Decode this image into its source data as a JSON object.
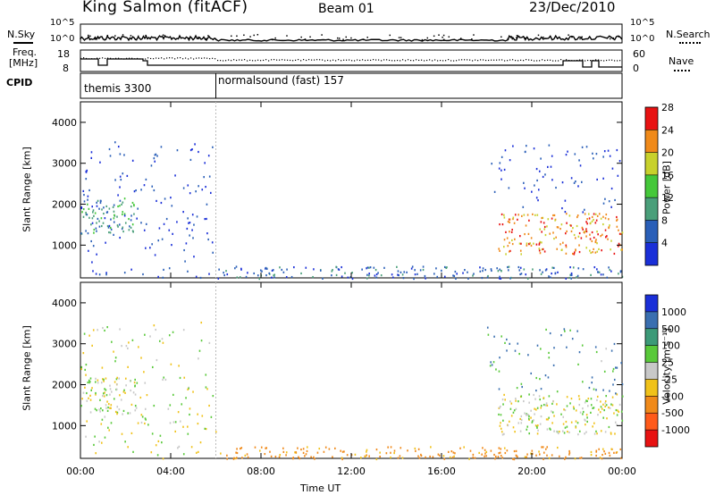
{
  "header": {
    "station": "King Salmon (fitACF)",
    "beam": "Beam 01",
    "date": "23/Dec/2010"
  },
  "noise_panel": {
    "left_label": "N.Sky",
    "right_label": "N.Search",
    "ticks_left": [
      "10^5",
      "10^0"
    ],
    "ticks_right": [
      "10^5",
      "10^0"
    ]
  },
  "freq_panel": {
    "left_label_1": "Freq.",
    "left_label_2": "[MHz]",
    "right_label": "Nave",
    "ticks_left": [
      "18",
      "8"
    ],
    "ticks_right": [
      "60",
      "0"
    ]
  },
  "cpid_panel": {
    "label": "CPID",
    "modes": [
      {
        "name": "themis 3300",
        "start_hour": 0
      },
      {
        "name": "normalsound (fast) 157",
        "start_hour": 6
      }
    ]
  },
  "x_axis": {
    "title": "Time UT",
    "ticks": [
      "00:00",
      "04:00",
      "08:00",
      "12:00",
      "16:00",
      "20:00",
      "00:00"
    ],
    "range_hours": [
      0,
      24
    ]
  },
  "chart_data": [
    {
      "type": "heatmap",
      "parameter": "power",
      "ylabel": "Slant Range [km]",
      "yticks": [
        "1000",
        "2000",
        "3000",
        "4000"
      ],
      "ylim": [
        200,
        4500
      ],
      "colorbar": {
        "label": "Power [dB]",
        "ticks": [
          "4",
          "8",
          "12",
          "16",
          "20",
          "24",
          "28"
        ],
        "colors": [
          "#1a2fd8",
          "#2a5fb8",
          "#4a9f7a",
          "#45c83a",
          "#c8d12c",
          "#f08a1a",
          "#e81212"
        ]
      },
      "regions": [
        {
          "t_start": 0.0,
          "t_end": 2.5,
          "range_start": 1300,
          "range_end": 2200,
          "value_db": 10
        },
        {
          "t_start": 0.0,
          "t_end": 6.0,
          "range_start": 200,
          "range_end": 3550,
          "value_db": 4
        },
        {
          "t_start": 6.0,
          "t_end": 24.0,
          "range_start": 200,
          "range_end": 500,
          "value_db": 6
        },
        {
          "t_start": 18.5,
          "t_end": 24.0,
          "range_start": 800,
          "range_end": 1800,
          "value_db": 22
        },
        {
          "t_start": 18.0,
          "t_end": 24.0,
          "range_start": 1800,
          "range_end": 3500,
          "value_db": 4
        }
      ]
    },
    {
      "type": "heatmap",
      "parameter": "velocity",
      "ylabel": "Slant Range [km]",
      "yticks": [
        "1000",
        "2000",
        "3000",
        "4000"
      ],
      "ylim": [
        200,
        4500
      ],
      "colorbar": {
        "label": "Velocity [m s⁻¹]",
        "ticks": [
          "1000",
          "500",
          "100",
          "25",
          "-25",
          "-100",
          "-500",
          "-1000"
        ],
        "colors": [
          "#1a2fd8",
          "#3a6fb0",
          "#3c9a78",
          "#59c93a",
          "#c8c8c8",
          "#f0c21a",
          "#f08a1a",
          "#ff5a1a",
          "#e81212"
        ]
      },
      "regions": [
        {
          "t_start": 0.0,
          "t_end": 2.5,
          "range_start": 1300,
          "range_end": 2200,
          "value_ms": 0
        },
        {
          "t_start": 0.0,
          "t_end": 6.0,
          "range_start": 200,
          "range_end": 3550,
          "value_ms": 0
        },
        {
          "t_start": 6.0,
          "t_end": 24.0,
          "range_start": 200,
          "range_end": 500,
          "value_ms": -150
        },
        {
          "t_start": 18.5,
          "t_end": 24.0,
          "range_start": 800,
          "range_end": 1800,
          "value_ms": 0
        },
        {
          "t_start": 18.0,
          "t_end": 24.0,
          "range_start": 1800,
          "range_end": 3500,
          "value_ms": 100
        }
      ]
    }
  ]
}
